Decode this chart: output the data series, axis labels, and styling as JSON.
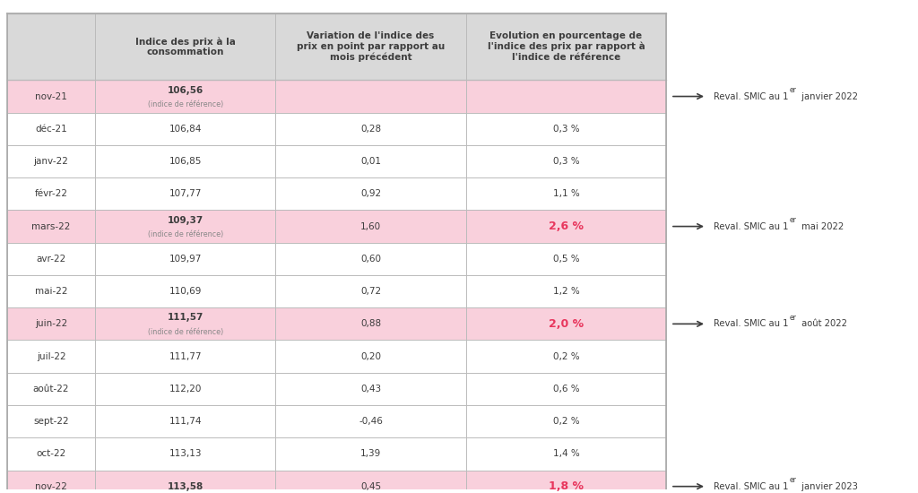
{
  "headers": [
    "",
    "Indice des prix à la\nconsommation",
    "Variation de l'indice des\nprix en point par rapport au\nmois précédent",
    "Evolution en pourcentage de\nl'indice des prix par rapport à\nl'indice de référence"
  ],
  "rows": [
    {
      "month": "nov-21",
      "indice": "106,56",
      "ref": true,
      "variation": "",
      "evolution": "",
      "highlight": true,
      "annotation": "Reval. SMIC au 1er janvier 2022",
      "annot_sup": "er"
    },
    {
      "month": "déc-21",
      "indice": "106,84",
      "ref": false,
      "variation": "0,28",
      "evolution": "0,3 %",
      "highlight": false,
      "annotation": "",
      "annot_sup": ""
    },
    {
      "month": "janv-22",
      "indice": "106,85",
      "ref": false,
      "variation": "0,01",
      "evolution": "0,3 %",
      "highlight": false,
      "annotation": "",
      "annot_sup": ""
    },
    {
      "month": "févr-22",
      "indice": "107,77",
      "ref": false,
      "variation": "0,92",
      "evolution": "1,1 %",
      "highlight": false,
      "annotation": "",
      "annot_sup": ""
    },
    {
      "month": "mars-22",
      "indice": "109,37",
      "ref": true,
      "variation": "1,60",
      "evolution": "2,6 %",
      "highlight": true,
      "annotation": "Reval. SMIC au 1er mai 2022",
      "annot_sup": "er"
    },
    {
      "month": "avr-22",
      "indice": "109,97",
      "ref": false,
      "variation": "0,60",
      "evolution": "0,5 %",
      "highlight": false,
      "annotation": "",
      "annot_sup": ""
    },
    {
      "month": "mai-22",
      "indice": "110,69",
      "ref": false,
      "variation": "0,72",
      "evolution": "1,2 %",
      "highlight": false,
      "annotation": "",
      "annot_sup": ""
    },
    {
      "month": "juin-22",
      "indice": "111,57",
      "ref": true,
      "variation": "0,88",
      "evolution": "2,0 %",
      "highlight": true,
      "annotation": "Reval. SMIC au 1er août 2022",
      "annot_sup": "er"
    },
    {
      "month": "juil-22",
      "indice": "111,77",
      "ref": false,
      "variation": "0,20",
      "evolution": "0,2 %",
      "highlight": false,
      "annotation": "",
      "annot_sup": ""
    },
    {
      "month": "août-22",
      "indice": "112,20",
      "ref": false,
      "variation": "0,43",
      "evolution": "0,6 %",
      "highlight": false,
      "annotation": "",
      "annot_sup": ""
    },
    {
      "month": "sept-22",
      "indice": "111,74",
      "ref": false,
      "variation": "-0,46",
      "evolution": "0,2 %",
      "highlight": false,
      "annotation": "",
      "annot_sup": ""
    },
    {
      "month": "oct-22",
      "indice": "113,13",
      "ref": false,
      "variation": "1,39",
      "evolution": "1,4 %",
      "highlight": false,
      "annotation": "",
      "annot_sup": ""
    },
    {
      "month": "nov-22",
      "indice": "113,58",
      "ref": false,
      "variation": "0,45",
      "evolution": "1,8 %",
      "highlight": true,
      "annotation": "Reval. SMIC au 1er janvier 2023",
      "annot_sup": "er"
    }
  ],
  "colors": {
    "header_bg": "#d9d9d9",
    "highlight_row_bg": "#f9d0dc",
    "normal_row_bg": "#ffffff",
    "alt_row_bg": "#ffffff",
    "border": "#c0c0c0",
    "text_normal": "#3d3d3d",
    "text_bold": "#3d3d3d",
    "text_red": "#e8365d",
    "text_month": "#3d3d3d",
    "arrow_color": "#3d3d3d",
    "ref_text": "#888888"
  },
  "fig_width": 10.24,
  "fig_height": 5.5,
  "dpi": 100
}
